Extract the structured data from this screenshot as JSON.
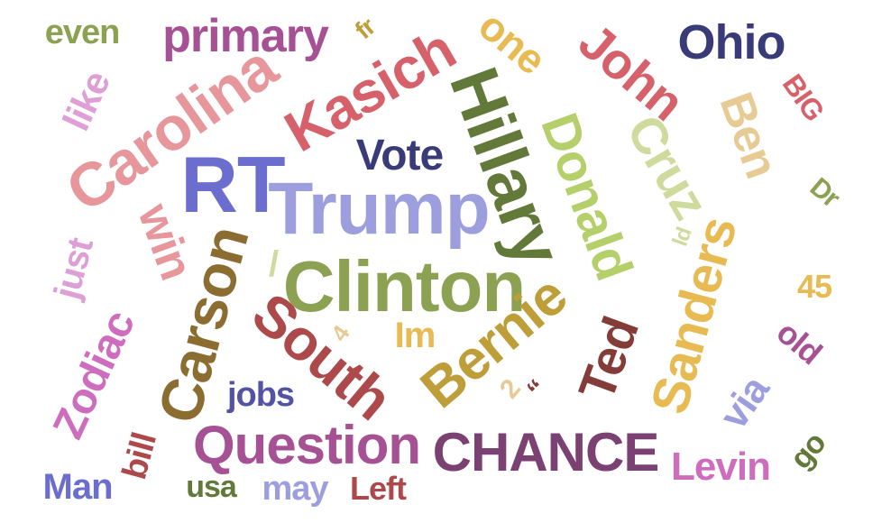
{
  "words": [
    {
      "text": "RT",
      "color": "#6b6ecf"
    },
    {
      "text": "Trump",
      "color": "#9c9ede"
    },
    {
      "text": "Clinton",
      "color": "#8ca252"
    },
    {
      "text": "Hillary",
      "color": "#637939"
    },
    {
      "text": "Carolina",
      "color": "#e7969c"
    },
    {
      "text": "Kasich",
      "color": "#d6616b"
    },
    {
      "text": "Carson",
      "color": "#8c6d31"
    },
    {
      "text": "South",
      "color": "#ad494a"
    },
    {
      "text": "Bernie",
      "color": "#bd9e39"
    },
    {
      "text": "Question",
      "color": "#a55194"
    },
    {
      "text": "CHANCE",
      "color": "#7b4173"
    },
    {
      "text": "Donald",
      "color": "#b5cf6b"
    },
    {
      "text": "Sanders",
      "color": "#e7ba52"
    },
    {
      "text": "Cruz",
      "color": "#cedb9c"
    },
    {
      "text": "Ted",
      "color": "#843c39"
    },
    {
      "text": "John",
      "color": "#d6616b"
    },
    {
      "text": "Ben",
      "color": "#e7cb94"
    },
    {
      "text": "primary",
      "color": "#a55194"
    },
    {
      "text": "Ohio",
      "color": "#393b79"
    },
    {
      "text": "Vote",
      "color": "#393b79"
    },
    {
      "text": "win",
      "color": "#e7969c"
    },
    {
      "text": "Zodiac",
      "color": "#ce6dbd"
    },
    {
      "text": "one",
      "color": "#e7ba52"
    },
    {
      "text": "like",
      "color": "#de9ed6"
    },
    {
      "text": "just",
      "color": "#de9ed6"
    },
    {
      "text": "Levin",
      "color": "#ce6dbd"
    },
    {
      "text": "via",
      "color": "#9c9ede"
    },
    {
      "text": "Im",
      "color": "#e7ba52"
    },
    {
      "text": "jobs",
      "color": "#5254a3"
    },
    {
      "text": "even",
      "color": "#8ca252"
    },
    {
      "text": "Man",
      "color": "#6b6ecf"
    },
    {
      "text": "may",
      "color": "#9c9ede"
    },
    {
      "text": "Left",
      "color": "#ad494a"
    },
    {
      "text": "usa",
      "color": "#637939"
    },
    {
      "text": "bill",
      "color": "#ad494a"
    },
    {
      "text": "old",
      "color": "#a55194"
    },
    {
      "text": "45",
      "color": "#e7ba52"
    },
    {
      "text": "go",
      "color": "#637939"
    },
    {
      "text": "BIG",
      "color": "#d6616b"
    },
    {
      "text": "Dr",
      "color": "#8ca252"
    },
    {
      "text": "fr",
      "color": "#bd9e39"
    },
    {
      "text": "ld",
      "color": "#cedb9c"
    },
    {
      "text": "2",
      "color": "#e7cb94"
    },
    {
      "text": "4",
      "color": "#e7cb94"
    },
    {
      "text": "“",
      "color": "#843c39"
    },
    {
      "text": "/",
      "color": "#cedb9c"
    }
  ]
}
